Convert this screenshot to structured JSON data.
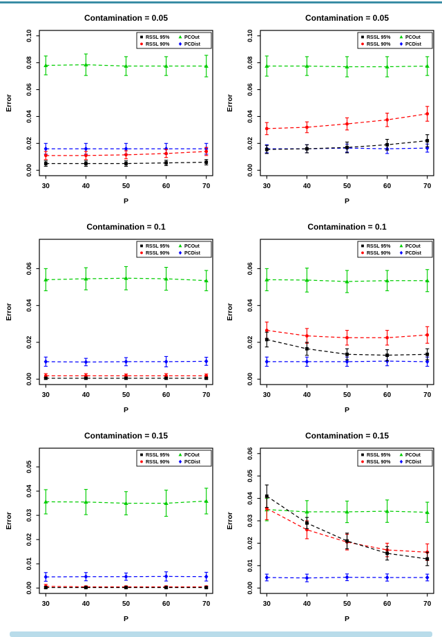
{
  "page": {
    "top_rule_color": "#3a8da5",
    "bottom_rule_color": "#b9dcea",
    "background": "#ffffff"
  },
  "legend": {
    "entries": [
      {
        "label": "RSSL 95%",
        "color": "#000000",
        "marker": "square"
      },
      {
        "label": "RSSL 90%",
        "color": "#ff0000",
        "marker": "circle"
      },
      {
        "label": "PCOut",
        "color": "#00cd00",
        "marker": "triangle"
      },
      {
        "label": "PCDist",
        "color": "#0000ff",
        "marker": "diamond"
      }
    ],
    "position": "top-right"
  },
  "chart_data": [
    {
      "type": "line",
      "title": "Contamination = 0.05",
      "xlabel": "P",
      "ylabel": "Error",
      "x": [
        30,
        40,
        50,
        60,
        70
      ],
      "xlim": [
        30,
        70
      ],
      "ylim": [
        0,
        0.1
      ],
      "yticks": [
        0,
        0.02,
        0.04,
        0.06,
        0.08,
        0.1
      ],
      "ytick_labels": [
        "0.00",
        "0.02",
        "0.04",
        "0.06",
        "0.08",
        "0.10"
      ],
      "grid": false,
      "legend_position": "top-right",
      "series": [
        {
          "name": "RSSL 95%",
          "color": "#000000",
          "marker": "square",
          "linestyle": "dashed",
          "values": [
            0.005,
            0.005,
            0.005,
            0.0055,
            0.006
          ],
          "errors": [
            0.002,
            0.002,
            0.002,
            0.002,
            0.002
          ]
        },
        {
          "name": "RSSL 90%",
          "color": "#ff0000",
          "marker": "circle",
          "linestyle": "dashed",
          "values": [
            0.011,
            0.011,
            0.0115,
            0.0125,
            0.014
          ],
          "errors": [
            0.003,
            0.003,
            0.003,
            0.003,
            0.003
          ]
        },
        {
          "name": "PCOut",
          "color": "#00cd00",
          "marker": "triangle",
          "linestyle": "dashed",
          "values": [
            0.078,
            0.0785,
            0.0775,
            0.0775,
            0.0775
          ],
          "errors": [
            0.007,
            0.008,
            0.007,
            0.007,
            0.008
          ]
        },
        {
          "name": "PCDist",
          "color": "#0000ff",
          "marker": "diamond",
          "linestyle": "dashed",
          "values": [
            0.016,
            0.016,
            0.016,
            0.016,
            0.016
          ],
          "errors": [
            0.004,
            0.004,
            0.004,
            0.004,
            0.004
          ]
        }
      ]
    },
    {
      "type": "line",
      "title": "Contamination = 0.05",
      "xlabel": "P",
      "ylabel": "Error",
      "x": [
        30,
        40,
        50,
        60,
        70
      ],
      "xlim": [
        30,
        70
      ],
      "ylim": [
        0,
        0.1
      ],
      "yticks": [
        0,
        0.02,
        0.04,
        0.06,
        0.08,
        0.1
      ],
      "ytick_labels": [
        "0.00",
        "0.02",
        "0.04",
        "0.06",
        "0.08",
        "0.10"
      ],
      "grid": false,
      "legend_position": "top-right",
      "series": [
        {
          "name": "RSSL 95%",
          "color": "#000000",
          "marker": "square",
          "linestyle": "dashed",
          "values": [
            0.0155,
            0.016,
            0.017,
            0.019,
            0.022
          ],
          "errors": [
            0.003,
            0.003,
            0.004,
            0.004,
            0.0045
          ]
        },
        {
          "name": "RSSL 90%",
          "color": "#ff0000",
          "marker": "circle",
          "linestyle": "dashed",
          "values": [
            0.031,
            0.032,
            0.0345,
            0.0375,
            0.042
          ],
          "errors": [
            0.0045,
            0.004,
            0.0045,
            0.005,
            0.0055
          ]
        },
        {
          "name": "PCOut",
          "color": "#00cd00",
          "marker": "triangle",
          "linestyle": "dashed",
          "values": [
            0.0775,
            0.0775,
            0.077,
            0.077,
            0.0775
          ],
          "errors": [
            0.0075,
            0.007,
            0.0075,
            0.0075,
            0.007
          ]
        },
        {
          "name": "PCDist",
          "color": "#0000ff",
          "marker": "diamond",
          "linestyle": "dashed",
          "values": [
            0.016,
            0.016,
            0.0165,
            0.016,
            0.0165
          ],
          "errors": [
            0.003,
            0.003,
            0.003,
            0.0035,
            0.003
          ]
        }
      ]
    },
    {
      "type": "line",
      "title": "Contamination = 0.1",
      "xlabel": "P",
      "ylabel": "Error",
      "x": [
        30,
        40,
        50,
        60,
        70
      ],
      "xlim": [
        30,
        70
      ],
      "ylim": [
        0,
        0.073
      ],
      "yticks": [
        0,
        0.02,
        0.04,
        0.06
      ],
      "ytick_labels": [
        "0.00",
        "0.02",
        "0.04",
        "0.06"
      ],
      "grid": false,
      "legend_position": "top-right",
      "series": [
        {
          "name": "RSSL 95%",
          "color": "#000000",
          "marker": "square",
          "linestyle": "dashed",
          "values": [
            0.0005,
            0.0005,
            0.0005,
            0.0005,
            0.0005
          ],
          "errors": [
            0.0005,
            0.0005,
            0.0005,
            0.0005,
            0.0005
          ]
        },
        {
          "name": "RSSL 90%",
          "color": "#ff0000",
          "marker": "circle",
          "linestyle": "dashed",
          "values": [
            0.0018,
            0.0018,
            0.0018,
            0.0018,
            0.0018
          ],
          "errors": [
            0.0012,
            0.0012,
            0.001,
            0.0012,
            0.001
          ]
        },
        {
          "name": "PCOut",
          "color": "#00cd00",
          "marker": "triangle",
          "linestyle": "dashed",
          "values": [
            0.054,
            0.0545,
            0.0548,
            0.0545,
            0.0535
          ],
          "errors": [
            0.006,
            0.006,
            0.0063,
            0.0062,
            0.0055
          ]
        },
        {
          "name": "PCDist",
          "color": "#0000ff",
          "marker": "diamond",
          "linestyle": "dashed",
          "values": [
            0.0095,
            0.0093,
            0.0095,
            0.0095,
            0.0097
          ],
          "errors": [
            0.0025,
            0.002,
            0.0022,
            0.0028,
            0.0022
          ]
        }
      ]
    },
    {
      "type": "line",
      "title": "Contamination = 0.1",
      "xlabel": "P",
      "ylabel": "Error",
      "x": [
        30,
        40,
        50,
        60,
        70
      ],
      "xlim": [
        30,
        70
      ],
      "ylim": [
        0,
        0.073
      ],
      "yticks": [
        0,
        0.02,
        0.04,
        0.06
      ],
      "ytick_labels": [
        "0.00",
        "0.02",
        "0.04",
        "0.06"
      ],
      "grid": false,
      "legend_position": "top-right",
      "series": [
        {
          "name": "RSSL 95%",
          "color": "#000000",
          "marker": "square",
          "linestyle": "dashed",
          "values": [
            0.0215,
            0.0165,
            0.0135,
            0.013,
            0.0135
          ],
          "errors": [
            0.004,
            0.0035,
            0.003,
            0.003,
            0.003
          ]
        },
        {
          "name": "RSSL 90%",
          "color": "#ff0000",
          "marker": "circle",
          "linestyle": "dashed",
          "values": [
            0.0265,
            0.0235,
            0.0225,
            0.0225,
            0.024
          ],
          "errors": [
            0.0045,
            0.004,
            0.004,
            0.004,
            0.0045
          ]
        },
        {
          "name": "PCOut",
          "color": "#00cd00",
          "marker": "triangle",
          "linestyle": "dashed",
          "values": [
            0.054,
            0.0538,
            0.053,
            0.0535,
            0.0535
          ],
          "errors": [
            0.006,
            0.0065,
            0.006,
            0.0055,
            0.006
          ]
        },
        {
          "name": "PCDist",
          "color": "#0000ff",
          "marker": "diamond",
          "linestyle": "dashed",
          "values": [
            0.0095,
            0.0095,
            0.0095,
            0.0098,
            0.0095
          ],
          "errors": [
            0.0025,
            0.0025,
            0.0025,
            0.0025,
            0.0025
          ]
        }
      ]
    },
    {
      "type": "line",
      "title": "Contamination = 0.15",
      "xlabel": "P",
      "ylabel": "Error",
      "x": [
        30,
        40,
        50,
        60,
        70
      ],
      "xlim": [
        30,
        70
      ],
      "ylim": [
        0,
        0.0555
      ],
      "yticks": [
        0,
        0.01,
        0.02,
        0.03,
        0.04,
        0.05
      ],
      "ytick_labels": [
        "0.00",
        "0.01",
        "0.02",
        "0.03",
        "0.04",
        "0.05"
      ],
      "grid": false,
      "legend_position": "top-right",
      "series": [
        {
          "name": "RSSL 95%",
          "color": "#000000",
          "marker": "square",
          "linestyle": "dashed",
          "values": [
            0.0002,
            0.0002,
            0.0002,
            0.0002,
            0.0002
          ],
          "errors": [
            0.0003,
            0.0003,
            0.0003,
            0.0003,
            0.0003
          ]
        },
        {
          "name": "RSSL 90%",
          "color": "#ff0000",
          "marker": "circle",
          "linestyle": "dashed",
          "values": [
            0.0007,
            0.0005,
            0.0005,
            0.0005,
            0.0005
          ],
          "errors": [
            0.0008,
            0.0004,
            0.0004,
            0.0004,
            0.0004
          ]
        },
        {
          "name": "PCOut",
          "color": "#00cd00",
          "marker": "triangle",
          "linestyle": "dashed",
          "values": [
            0.0356,
            0.0355,
            0.035,
            0.035,
            0.0359
          ],
          "errors": [
            0.005,
            0.0052,
            0.0048,
            0.0054,
            0.0053
          ]
        },
        {
          "name": "PCDist",
          "color": "#0000ff",
          "marker": "diamond",
          "linestyle": "dashed",
          "values": [
            0.0046,
            0.0047,
            0.0047,
            0.0048,
            0.0047
          ],
          "errors": [
            0.0018,
            0.0017,
            0.0015,
            0.0019,
            0.0018
          ]
        }
      ]
    },
    {
      "type": "line",
      "title": "Contamination = 0.15",
      "xlabel": "P",
      "ylabel": "Error",
      "x": [
        30,
        40,
        50,
        60,
        70
      ],
      "xlim": [
        30,
        70
      ],
      "ylim": [
        0,
        0.06
      ],
      "yticks": [
        0,
        0.01,
        0.02,
        0.03,
        0.04,
        0.05,
        0.06
      ],
      "ytick_labels": [
        "0.00",
        "0.01",
        "0.02",
        "0.03",
        "0.04",
        "0.05",
        "0.06"
      ],
      "grid": false,
      "legend_position": "top-right",
      "series": [
        {
          "name": "RSSL 95%",
          "color": "#000000",
          "marker": "square",
          "linestyle": "dashed",
          "values": [
            0.041,
            0.029,
            0.021,
            0.0155,
            0.013
          ],
          "errors": [
            0.005,
            0.0025,
            0.0035,
            0.003,
            0.003
          ]
        },
        {
          "name": "RSSL 90%",
          "color": "#ff0000",
          "marker": "circle",
          "linestyle": "dashed",
          "values": [
            0.0355,
            0.026,
            0.0205,
            0.017,
            0.016
          ],
          "errors": [
            0.005,
            0.004,
            0.0035,
            0.003,
            0.0037
          ]
        },
        {
          "name": "PCOut",
          "color": "#00cd00",
          "marker": "triangle",
          "linestyle": "dashed",
          "values": [
            0.035,
            0.034,
            0.034,
            0.0343,
            0.0338
          ],
          "errors": [
            0.005,
            0.005,
            0.0048,
            0.005,
            0.0045
          ]
        },
        {
          "name": "PCDist",
          "color": "#0000ff",
          "marker": "diamond",
          "linestyle": "dashed",
          "values": [
            0.0047,
            0.0045,
            0.0048,
            0.0047,
            0.0047
          ],
          "errors": [
            0.0015,
            0.0017,
            0.0015,
            0.0016,
            0.0015
          ]
        }
      ]
    }
  ]
}
